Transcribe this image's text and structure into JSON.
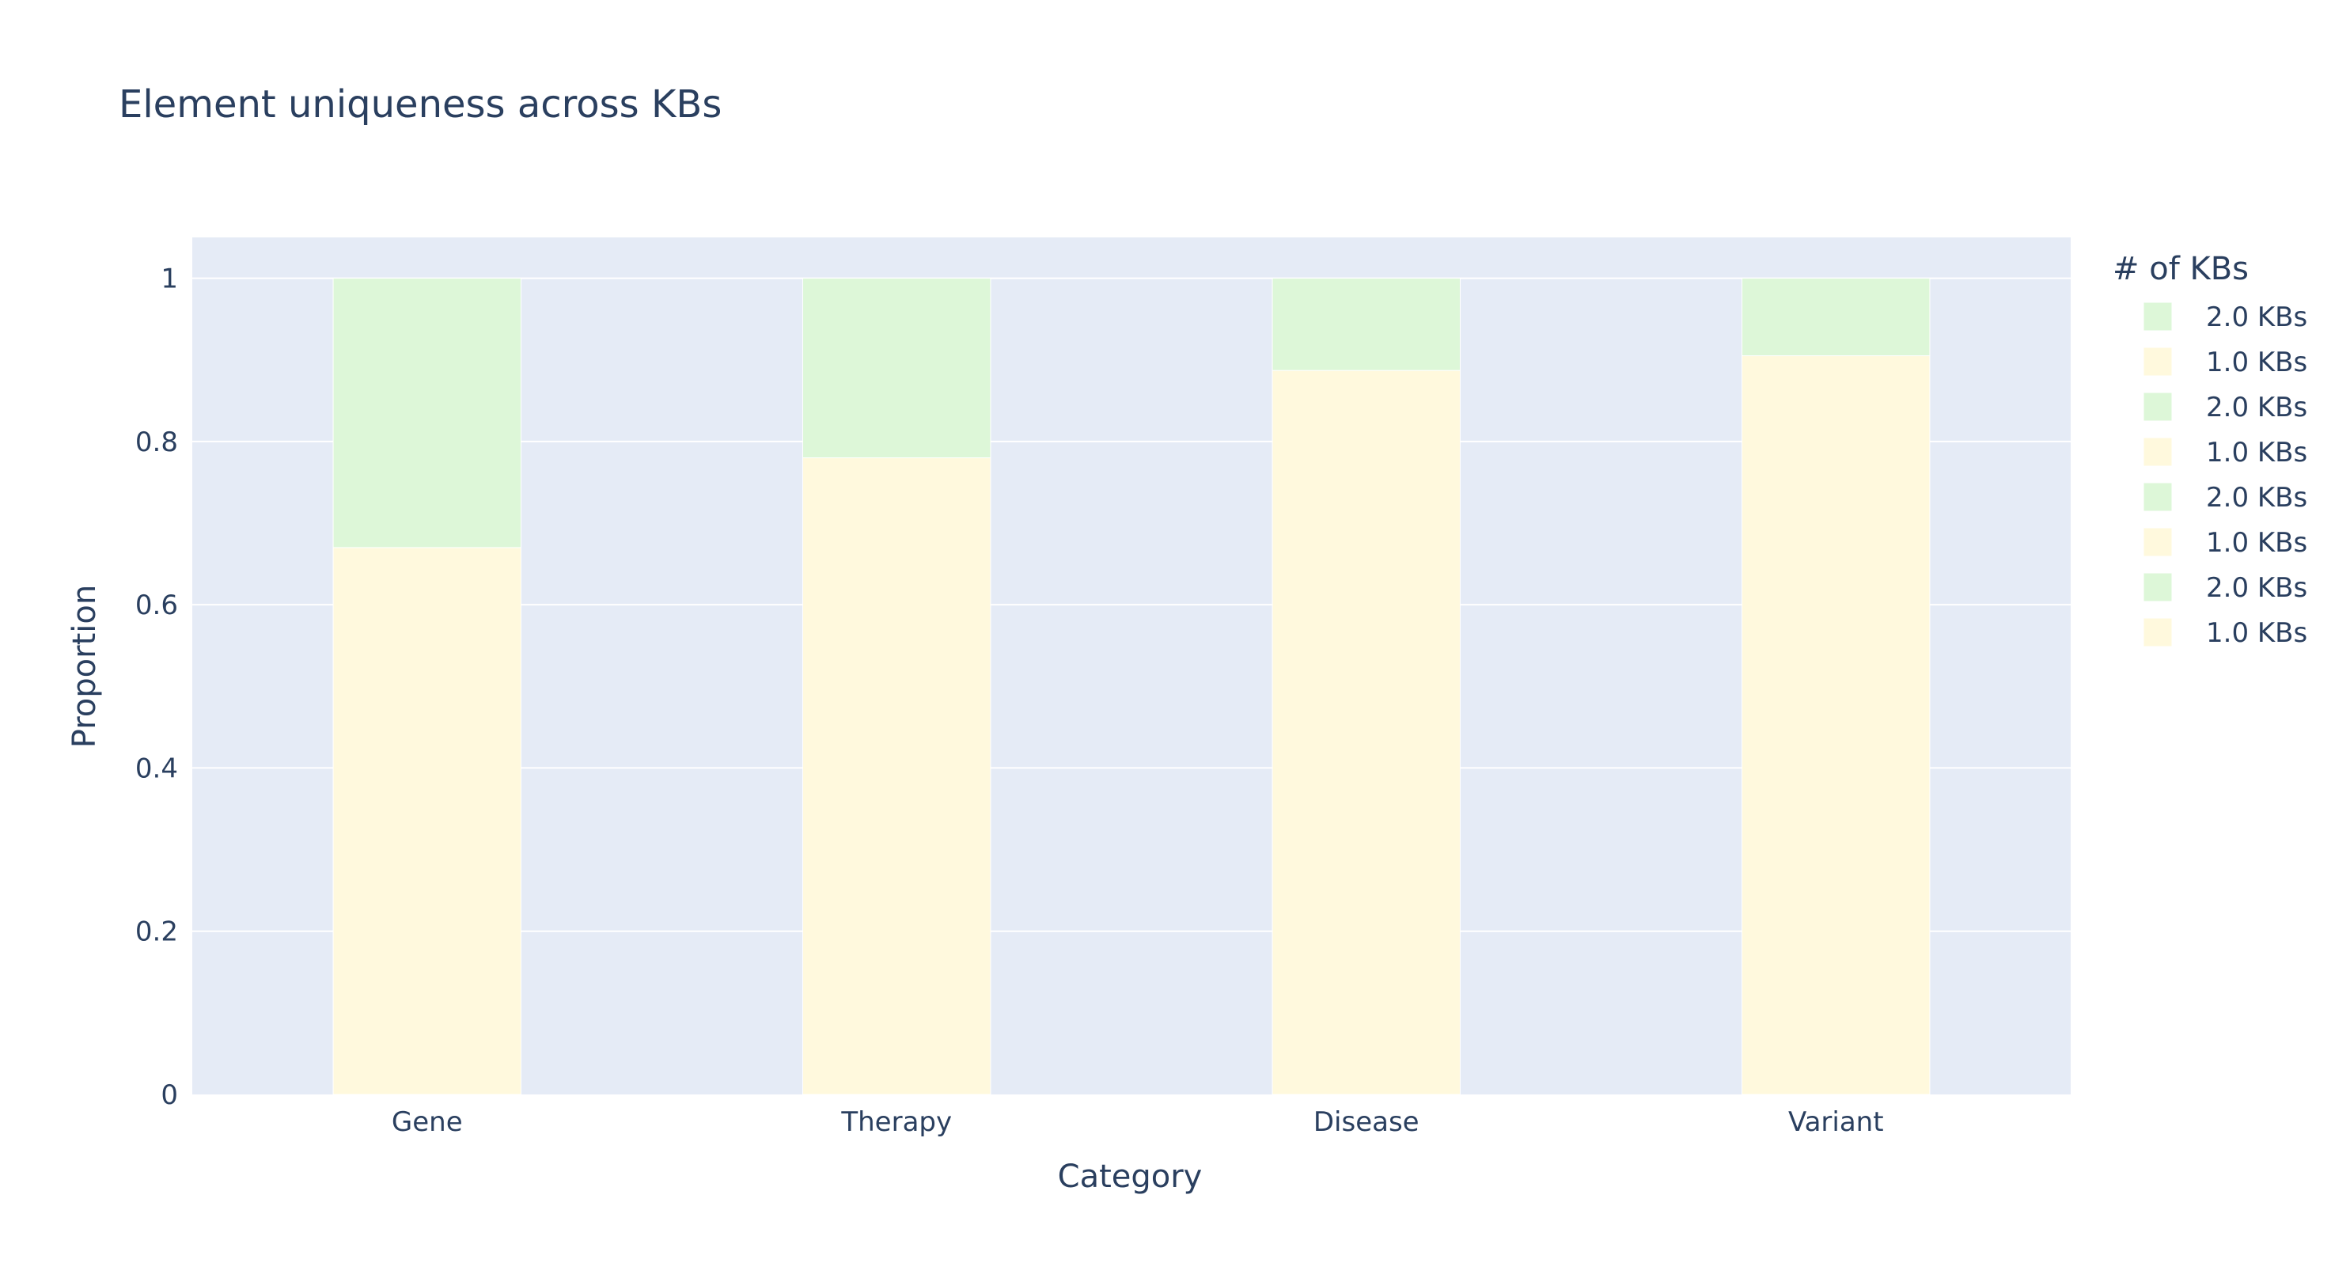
{
  "chart_data": {
    "type": "bar",
    "barmode": "stack",
    "title": "Element uniqueness across KBs",
    "xlabel": "Category",
    "ylabel": "Proportion",
    "categories": [
      "Gene",
      "Therapy",
      "Disease",
      "Variant"
    ],
    "ylim": [
      0,
      1.05
    ],
    "yticks": [
      0,
      0.2,
      0.4,
      0.6,
      0.8,
      1
    ],
    "ytick_labels": [
      "0",
      "0.2",
      "0.4",
      "0.6",
      "0.8",
      "1"
    ],
    "grid": true,
    "legend": {
      "title": "# of KBs",
      "placement": "right",
      "entries": [
        "2.0 KBs",
        "1.0 KBs",
        "2.0 KBs",
        "1.0 KBs",
        "2.0 KBs",
        "1.0 KBs",
        "2.0 KBs",
        "1.0 KBs"
      ]
    },
    "colors": {
      "1.0 KBs": "#fff9dd",
      "2.0 KBs": "#ddf7d8",
      "plot_bg": "#e5ebf6",
      "text": "#2a3f5f",
      "grid": "#ffffff"
    },
    "series": [
      {
        "name": "1.0 KBs",
        "values": [
          0.67,
          0.78,
          0.887,
          0.905
        ]
      },
      {
        "name": "2.0 KBs",
        "values": [
          0.33,
          0.22,
          0.113,
          0.095
        ]
      }
    ]
  }
}
